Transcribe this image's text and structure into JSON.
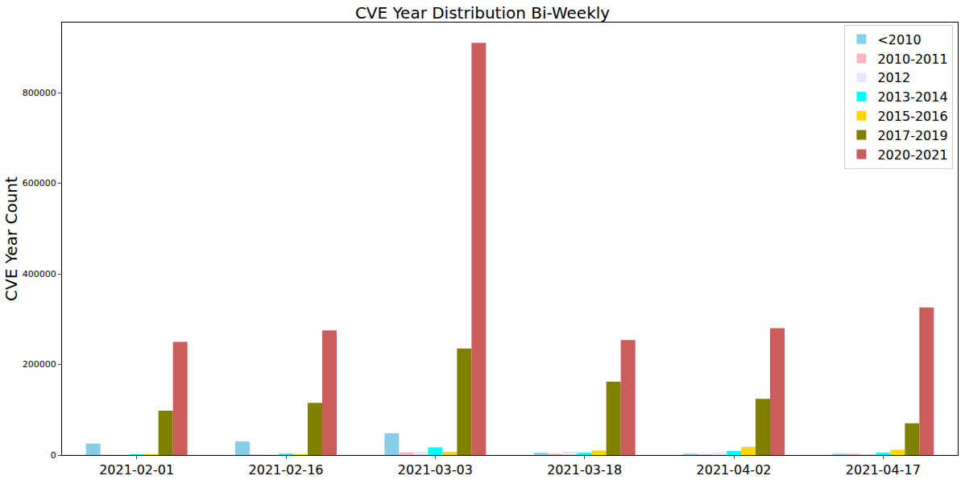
{
  "chart_data": {
    "type": "bar",
    "title": "CVE Year Distribution Bi-Weekly",
    "y_label": "CVE Year Count",
    "categories": [
      "2021-02-01",
      "2021-02-16",
      "2021-03-03",
      "2021-03-18",
      "2021-04-02",
      "2021-04-17"
    ],
    "series": [
      {
        "name": "<2010",
        "color": "#87ceeb",
        "values": [
          25000,
          30000,
          48000,
          5000,
          3000,
          3000
        ]
      },
      {
        "name": "2010-2011",
        "color": "#ffb6c1",
        "values": [
          500,
          1000,
          6000,
          3000,
          2000,
          3000
        ]
      },
      {
        "name": "2012",
        "color": "#e6e6fa",
        "values": [
          500,
          1000,
          7000,
          8000,
          6000,
          3000
        ]
      },
      {
        "name": "2013-2014",
        "color": "#00ffff",
        "values": [
          2000,
          3000,
          17000,
          5000,
          9000,
          5000
        ]
      },
      {
        "name": "2015-2016",
        "color": "#ffd700",
        "values": [
          2000,
          2000,
          7000,
          10000,
          18000,
          12000
        ]
      },
      {
        "name": "2017-2019",
        "color": "#808000",
        "values": [
          98000,
          115000,
          235000,
          162000,
          124000,
          70000
        ]
      },
      {
        "name": "2020-2021",
        "color": "#cd5c5c",
        "values": [
          250000,
          275000,
          910000,
          254000,
          280000,
          326000
        ]
      }
    ],
    "ylim": [
      0,
      955000
    ],
    "yticks": [
      0,
      200000,
      400000,
      600000,
      800000
    ],
    "grid": false,
    "legend": "upper right"
  }
}
